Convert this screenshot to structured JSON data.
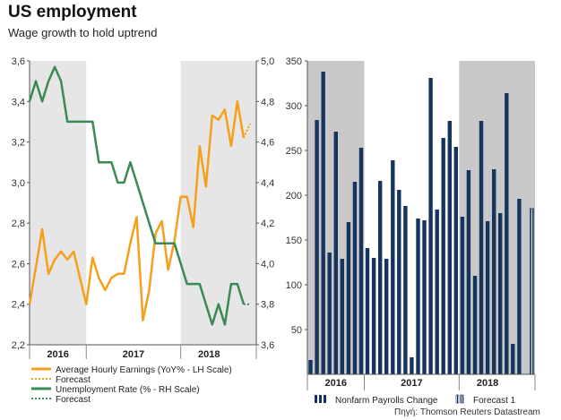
{
  "header": {
    "title": "US employment",
    "subtitle": "Wage growth to hold uptrend"
  },
  "source": "Πηγή: Thomson Reuters Datastream",
  "colors": {
    "earnings": "#f5a01a",
    "unemployment": "#3a8a55",
    "payrolls": "#15355f",
    "shade_left": "#e6e6e6",
    "shade_right": "#c8c8c8"
  },
  "chart_data": [
    {
      "type": "line",
      "title": "",
      "x_axis": {
        "range": [
          0,
          36
        ],
        "tick_labels": [
          {
            "label": "2016",
            "center": 4.5
          },
          {
            "label": "2017",
            "center": 16.5
          },
          {
            "label": "2018",
            "center": 28.5
          }
        ],
        "dividers": [
          0,
          9,
          24,
          36
        ],
        "shaded_spans": [
          [
            0,
            9
          ],
          [
            24,
            36
          ]
        ]
      },
      "y_left": {
        "range": [
          2.2,
          3.6
        ],
        "ticks": [
          "2,2",
          "2,4",
          "2,6",
          "2,8",
          "3,0",
          "3,2",
          "3,4",
          "3,6"
        ],
        "tick_values": [
          2.2,
          2.4,
          2.6,
          2.8,
          3.0,
          3.2,
          3.4,
          3.6
        ]
      },
      "y_right": {
        "range": [
          3.6,
          5.0
        ],
        "ticks": [
          "3,6",
          "3,8",
          "4,0",
          "4,2",
          "4,4",
          "4,6",
          "4,8",
          "5,0"
        ],
        "tick_values": [
          3.6,
          3.8,
          4.0,
          4.2,
          4.4,
          4.6,
          4.8,
          5.0
        ]
      },
      "series": [
        {
          "name": "Average Hourly Earnings (YoY% - LH Scale)",
          "axis": "left",
          "x": [
            0,
            1,
            2,
            3,
            4,
            5,
            6,
            7,
            8,
            9,
            10,
            11,
            12,
            13,
            14,
            15,
            16,
            17,
            18,
            19,
            20,
            21,
            22,
            23,
            24,
            25,
            26,
            27,
            28,
            29,
            30,
            31,
            32,
            33,
            34
          ],
          "values": [
            2.4,
            2.58,
            2.77,
            2.55,
            2.62,
            2.66,
            2.62,
            2.66,
            2.53,
            2.4,
            2.63,
            2.53,
            2.47,
            2.53,
            2.55,
            2.55,
            2.7,
            2.83,
            2.32,
            2.47,
            2.75,
            2.81,
            2.57,
            2.71,
            2.93,
            2.93,
            2.78,
            3.18,
            2.98,
            3.33,
            3.31,
            3.36,
            3.18,
            3.4,
            3.22
          ]
        },
        {
          "name": "Forecast",
          "axis": "left",
          "x": [
            34,
            35
          ],
          "values": [
            3.22,
            3.29
          ]
        },
        {
          "name": "Unemployment Rate (% - RH Scale)",
          "axis": "right",
          "x": [
            0,
            1,
            2,
            3,
            4,
            5,
            6,
            7,
            8,
            9,
            10,
            11,
            12,
            13,
            14,
            15,
            16,
            17,
            18,
            19,
            20,
            21,
            22,
            23,
            24,
            25,
            26,
            27,
            28,
            29,
            30,
            31,
            32,
            33,
            34
          ],
          "values": [
            4.8,
            4.9,
            4.8,
            4.9,
            4.97,
            4.9,
            4.7,
            4.7,
            4.7,
            4.7,
            4.7,
            4.5,
            4.5,
            4.5,
            4.4,
            4.4,
            4.5,
            4.4,
            4.3,
            4.2,
            4.1,
            4.1,
            4.1,
            4.1,
            4.0,
            3.9,
            3.9,
            3.9,
            3.8,
            3.7,
            3.8,
            3.7,
            3.9,
            3.9,
            3.8
          ]
        },
        {
          "name": "Forecast",
          "axis": "right",
          "x": [
            34,
            35
          ],
          "values": [
            3.8,
            3.8
          ]
        }
      ],
      "legend": {
        "placement": "bottom",
        "items": [
          {
            "label": "Average Hourly Earnings (YoY% - LH Scale)",
            "style": "solid",
            "color_key": "earnings"
          },
          {
            "label": "Forecast",
            "style": "dotted",
            "color_key": "earnings"
          },
          {
            "label": "Unemployment Rate (% - RH Scale)",
            "style": "solid",
            "color_key": "unemployment"
          },
          {
            "label": "Forecast",
            "style": "dotted",
            "color_key": "unemployment"
          }
        ]
      }
    },
    {
      "type": "bar",
      "title": "",
      "x_axis": {
        "range": [
          0,
          36
        ],
        "tick_labels": [
          {
            "label": "2016",
            "center": 4.5
          },
          {
            "label": "2017",
            "center": 16.5
          },
          {
            "label": "2018",
            "center": 28.5
          }
        ],
        "dividers": [
          0,
          9,
          24,
          36
        ],
        "shaded_spans": [
          [
            0,
            9
          ],
          [
            24,
            36
          ]
        ]
      },
      "y_axis": {
        "range": [
          0,
          350
        ],
        "ticks": [
          "50",
          "100",
          "150",
          "200",
          "250",
          "300",
          "350"
        ],
        "tick_values": [
          50,
          100,
          150,
          200,
          250,
          300,
          350
        ]
      },
      "series": [
        {
          "name": "Nonfarm Payrolls Change",
          "values": [
            16,
            284,
            338,
            136,
            271,
            129,
            170,
            215,
            253,
            141,
            130,
            216,
            129,
            239,
            206,
            188,
            19,
            174,
            172,
            331,
            184,
            264,
            283,
            254,
            176,
            228,
            110,
            283,
            171,
            229,
            180,
            314,
            34,
            196
          ]
        },
        {
          "name": "Forecast 1",
          "values": [
            185
          ]
        }
      ],
      "legend": {
        "placement": "bottom",
        "items": [
          {
            "label": "Nonfarm Payrolls Change",
            "style": "solid-bar",
            "color_key": "payrolls"
          },
          {
            "label": "Forecast 1",
            "style": "hatched-bar",
            "color_key": "payrolls"
          }
        ]
      }
    }
  ]
}
